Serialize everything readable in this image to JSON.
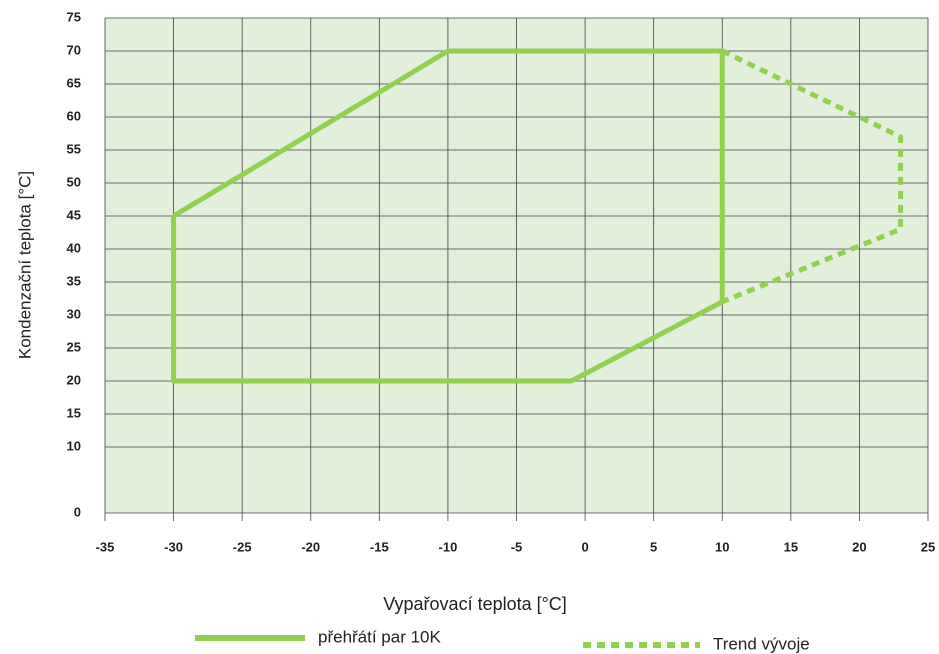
{
  "chart_data": {
    "type": "line",
    "x_label": "Vypařovací teplota [°C]",
    "y_label": "Kondenzační teplota [°C]",
    "xlim": [
      -35,
      25
    ],
    "xticks": [
      -35,
      -30,
      -25,
      -20,
      -15,
      -10,
      -5,
      0,
      5,
      10,
      15,
      20,
      25
    ],
    "ylim": [
      0,
      75
    ],
    "yticks": [
      0,
      10,
      15,
      20,
      25,
      30,
      35,
      40,
      45,
      50,
      55,
      60,
      65,
      70,
      75
    ],
    "grid": true,
    "background": "#e2efda",
    "series": [
      {
        "name": "přehřátí par 10K",
        "color": "#92d050",
        "dashed": false,
        "x": [
          -30,
          -10,
          10,
          10,
          -1,
          -30,
          -30
        ],
        "values": [
          45,
          70,
          70,
          32,
          20,
          20,
          45
        ]
      },
      {
        "name": "Trend vývoje",
        "color": "#92d050",
        "dashed": true,
        "x": [
          10,
          23,
          23,
          10
        ],
        "values": [
          70,
          57,
          43,
          32
        ]
      }
    ]
  }
}
